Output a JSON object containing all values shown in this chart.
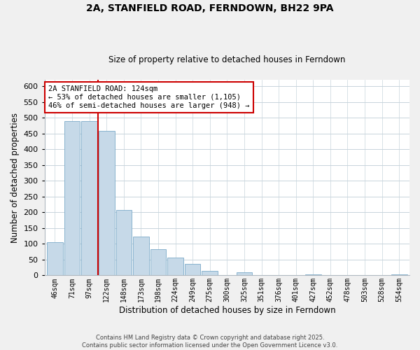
{
  "title": "2A, STANFIELD ROAD, FERNDOWN, BH22 9PA",
  "subtitle": "Size of property relative to detached houses in Ferndown",
  "xlabel": "Distribution of detached houses by size in Ferndown",
  "ylabel": "Number of detached properties",
  "bar_labels": [
    "46sqm",
    "71sqm",
    "97sqm",
    "122sqm",
    "148sqm",
    "173sqm",
    "198sqm",
    "224sqm",
    "249sqm",
    "275sqm",
    "300sqm",
    "325sqm",
    "351sqm",
    "376sqm",
    "401sqm",
    "427sqm",
    "452sqm",
    "478sqm",
    "503sqm",
    "528sqm",
    "554sqm"
  ],
  "bar_values": [
    105,
    490,
    490,
    457,
    208,
    122,
    82,
    57,
    36,
    15,
    0,
    10,
    0,
    0,
    0,
    4,
    0,
    0,
    0,
    0,
    4
  ],
  "bar_color": "#c6d9e8",
  "bar_edgecolor": "#7baac8",
  "property_line_color": "#cc0000",
  "annotation_title": "2A STANFIELD ROAD: 124sqm",
  "annotation_line1": "← 53% of detached houses are smaller (1,105)",
  "annotation_line2": "46% of semi-detached houses are larger (948) →",
  "annotation_box_facecolor": "#ffffff",
  "annotation_box_edgecolor": "#cc0000",
  "ylim": [
    0,
    620
  ],
  "yticks": [
    0,
    50,
    100,
    150,
    200,
    250,
    300,
    350,
    400,
    450,
    500,
    550,
    600
  ],
  "footer_line1": "Contains HM Land Registry data © Crown copyright and database right 2025.",
  "footer_line2": "Contains public sector information licensed under the Open Government Licence v3.0.",
  "background_color": "#f0f0f0",
  "plot_background_color": "#ffffff",
  "grid_color": "#c8d4dc"
}
